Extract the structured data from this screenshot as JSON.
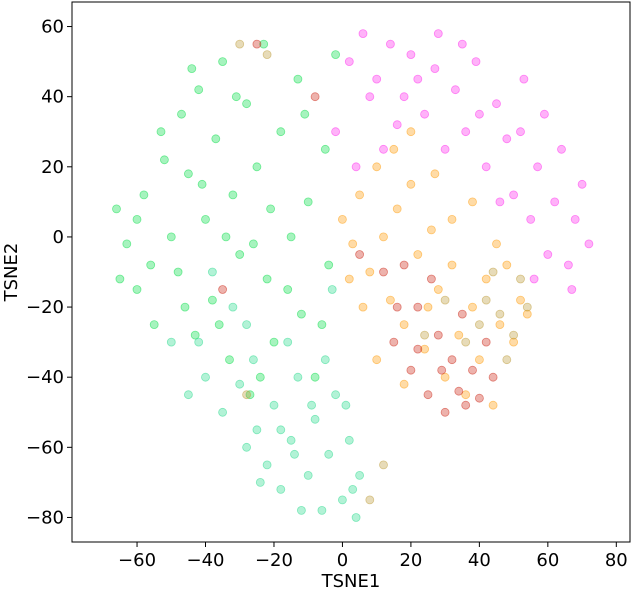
{
  "chart_data": {
    "type": "scatter",
    "title": "",
    "xlabel": "TSNE1",
    "ylabel": "TSNE2",
    "xlim": [
      -79,
      84
    ],
    "ylim": [
      -87,
      67
    ],
    "xticks": [
      -60,
      -40,
      -20,
      0,
      20,
      40,
      60,
      80
    ],
    "yticks": [
      -80,
      -60,
      -40,
      -20,
      0,
      20,
      40,
      60
    ],
    "xtick_labels": [
      "−60",
      "−40",
      "−20",
      "0",
      "20",
      "40",
      "60",
      "80"
    ],
    "ytick_labels": [
      "−80",
      "−60",
      "−40",
      "−20",
      "0",
      "20",
      "40",
      "60"
    ],
    "grid": false,
    "legend": "none",
    "marker_opacity": 0.35,
    "series": [
      {
        "color": "#00dd44",
        "points": [
          [
            -66,
            8
          ],
          [
            -63,
            -2
          ],
          [
            -60,
            -15
          ],
          [
            -58,
            12
          ],
          [
            -55,
            -25
          ],
          [
            -52,
            22
          ],
          [
            -50,
            0
          ],
          [
            -48,
            -10
          ],
          [
            -47,
            35
          ],
          [
            -45,
            18
          ],
          [
            -43,
            -28
          ],
          [
            -42,
            42
          ],
          [
            -40,
            5
          ],
          [
            -38,
            -18
          ],
          [
            -37,
            28
          ],
          [
            -35,
            50
          ],
          [
            -33,
            -35
          ],
          [
            -32,
            12
          ],
          [
            -30,
            -5
          ],
          [
            -28,
            38
          ],
          [
            -27,
            -45
          ],
          [
            -25,
            20
          ],
          [
            -23,
            55
          ],
          [
            -22,
            -12
          ],
          [
            -20,
            -30
          ],
          [
            -18,
            30
          ],
          [
            -15,
            0
          ],
          [
            -13,
            45
          ],
          [
            -12,
            -22
          ],
          [
            -10,
            10
          ],
          [
            -8,
            -40
          ],
          [
            -5,
            25
          ],
          [
            -4,
            -8
          ],
          [
            -2,
            52
          ],
          [
            -60,
            5
          ],
          [
            -56,
            -8
          ],
          [
            -53,
            30
          ],
          [
            -46,
            -20
          ],
          [
            -41,
            15
          ],
          [
            -36,
            -25
          ],
          [
            -31,
            40
          ],
          [
            -26,
            -2
          ],
          [
            -21,
            8
          ],
          [
            -16,
            -15
          ],
          [
            -11,
            35
          ],
          [
            -6,
            -25
          ],
          [
            -65,
            -12
          ],
          [
            -44,
            48
          ],
          [
            -34,
            0
          ],
          [
            -24,
            -40
          ]
        ]
      },
      {
        "color": "#22d98a",
        "points": [
          [
            -35,
            -50
          ],
          [
            -30,
            -42
          ],
          [
            -28,
            -60
          ],
          [
            -25,
            -55
          ],
          [
            -22,
            -65
          ],
          [
            -20,
            -48
          ],
          [
            -18,
            -72
          ],
          [
            -15,
            -58
          ],
          [
            -13,
            -40
          ],
          [
            -10,
            -68
          ],
          [
            -8,
            -52
          ],
          [
            -6,
            -78
          ],
          [
            -4,
            -62
          ],
          [
            -2,
            -45
          ],
          [
            0,
            -75
          ],
          [
            2,
            -58
          ],
          [
            4,
            -80
          ],
          [
            5,
            -68
          ],
          [
            -12,
            -78
          ],
          [
            -26,
            -35
          ],
          [
            -32,
            -20
          ],
          [
            -38,
            -10
          ],
          [
            -16,
            -30
          ],
          [
            -5,
            -35
          ],
          [
            -3,
            -15
          ],
          [
            -40,
            -40
          ],
          [
            -45,
            -45
          ],
          [
            -42,
            -30
          ],
          [
            -24,
            -70
          ],
          [
            -14,
            -62
          ],
          [
            -9,
            -48
          ],
          [
            1,
            -48
          ],
          [
            3,
            -72
          ],
          [
            -18,
            -55
          ],
          [
            -28,
            -25
          ],
          [
            -50,
            -30
          ]
        ]
      },
      {
        "color": "#ff22ee",
        "points": [
          [
            2,
            50
          ],
          [
            6,
            58
          ],
          [
            10,
            45
          ],
          [
            14,
            55
          ],
          [
            18,
            40
          ],
          [
            20,
            52
          ],
          [
            24,
            35
          ],
          [
            27,
            48
          ],
          [
            30,
            25
          ],
          [
            33,
            42
          ],
          [
            36,
            30
          ],
          [
            39,
            50
          ],
          [
            42,
            20
          ],
          [
            45,
            38
          ],
          [
            48,
            28
          ],
          [
            50,
            12
          ],
          [
            53,
            45
          ],
          [
            55,
            5
          ],
          [
            57,
            20
          ],
          [
            60,
            -5
          ],
          [
            62,
            10
          ],
          [
            64,
            25
          ],
          [
            66,
            -8
          ],
          [
            68,
            5
          ],
          [
            70,
            15
          ],
          [
            72,
            -2
          ],
          [
            56,
            -12
          ],
          [
            52,
            30
          ],
          [
            46,
            10
          ],
          [
            40,
            35
          ],
          [
            35,
            55
          ],
          [
            28,
            58
          ],
          [
            22,
            45
          ],
          [
            16,
            32
          ],
          [
            12,
            25
          ],
          [
            8,
            40
          ],
          [
            -2,
            30
          ],
          [
            4,
            20
          ],
          [
            59,
            35
          ],
          [
            67,
            -15
          ]
        ]
      },
      {
        "color": "#ff9900",
        "points": [
          [
            0,
            5
          ],
          [
            3,
            -2
          ],
          [
            5,
            12
          ],
          [
            8,
            -10
          ],
          [
            10,
            20
          ],
          [
            12,
            0
          ],
          [
            14,
            -18
          ],
          [
            16,
            8
          ],
          [
            18,
            -25
          ],
          [
            20,
            15
          ],
          [
            22,
            -5
          ],
          [
            24,
            -32
          ],
          [
            26,
            2
          ],
          [
            28,
            -15
          ],
          [
            30,
            -40
          ],
          [
            32,
            -8
          ],
          [
            34,
            -28
          ],
          [
            36,
            -45
          ],
          [
            38,
            -20
          ],
          [
            40,
            -35
          ],
          [
            42,
            -12
          ],
          [
            44,
            -48
          ],
          [
            46,
            -25
          ],
          [
            48,
            -8
          ],
          [
            50,
            -30
          ],
          [
            52,
            -18
          ],
          [
            54,
            -22
          ],
          [
            15,
            25
          ],
          [
            20,
            30
          ],
          [
            6,
            -20
          ],
          [
            10,
            -35
          ],
          [
            18,
            -42
          ],
          [
            25,
            -20
          ],
          [
            32,
            5
          ],
          [
            45,
            -2
          ],
          [
            38,
            10
          ],
          [
            27,
            18
          ],
          [
            2,
            -12
          ]
        ]
      },
      {
        "color": "#cc2211",
        "points": [
          [
            12,
            -10
          ],
          [
            15,
            -30
          ],
          [
            18,
            -8
          ],
          [
            20,
            -38
          ],
          [
            22,
            -20
          ],
          [
            25,
            -45
          ],
          [
            28,
            -28
          ],
          [
            30,
            -50
          ],
          [
            32,
            -35
          ],
          [
            34,
            -44
          ],
          [
            36,
            -48
          ],
          [
            38,
            -38
          ],
          [
            40,
            -46
          ],
          [
            42,
            -30
          ],
          [
            35,
            -22
          ],
          [
            26,
            -12
          ],
          [
            22,
            -32
          ],
          [
            16,
            -20
          ],
          [
            44,
            -40
          ],
          [
            29,
            -38
          ],
          [
            -8,
            40
          ],
          [
            -25,
            55
          ],
          [
            -35,
            -15
          ],
          [
            5,
            -5
          ]
        ]
      },
      {
        "color": "#bb9933",
        "points": [
          [
            46,
            -22
          ],
          [
            50,
            -28
          ],
          [
            54,
            -20
          ],
          [
            42,
            -18
          ],
          [
            48,
            -35
          ],
          [
            40,
            -25
          ],
          [
            52,
            -12
          ],
          [
            36,
            -30
          ],
          [
            44,
            -10
          ],
          [
            30,
            -18
          ],
          [
            -30,
            55
          ],
          [
            -22,
            52
          ],
          [
            -28,
            -45
          ],
          [
            12,
            -65
          ],
          [
            8,
            -75
          ],
          [
            24,
            -28
          ]
        ]
      }
    ]
  }
}
